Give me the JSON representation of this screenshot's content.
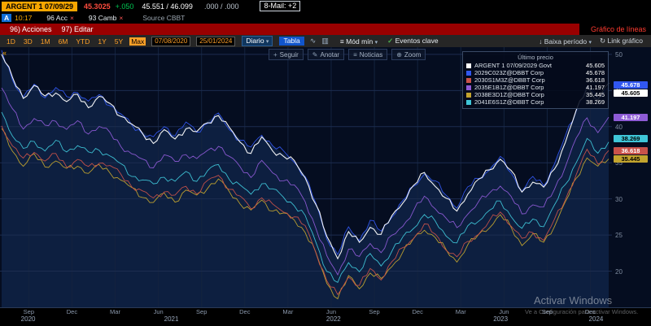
{
  "header": {
    "security": "ARGENT 1 07/09/29",
    "last_price": "45.3025",
    "change": "+.050",
    "bid_ask": "45.551 / 46.099",
    "yield_pair": ".000 / .000",
    "mail": "8-Mail: +2",
    "time_flag": "A",
    "time": "10:17",
    "acc": "96 Acc",
    "camb": "93 Camb",
    "source": "Source CBBT"
  },
  "menubar": {
    "items": [
      "96) Acciones",
      "97) Editar"
    ],
    "chart_type": "Gráfico de líneas"
  },
  "toolbar": {
    "periods": [
      "1D",
      "3D",
      "1M",
      "6M",
      "YTD",
      "1Y",
      "5Y",
      "Max"
    ],
    "selected_period": "Max",
    "date_from": "07/08/2020",
    "date_to": "25/01/2024",
    "frequency": "Diario",
    "table_label": "Tabla",
    "mod_label": "Mód mín",
    "events_label": "Eventos clave",
    "right_items": [
      "Baixa período",
      "Link gráfico"
    ]
  },
  "chart_tools": {
    "items": [
      {
        "icon": "+",
        "label": "Seguir"
      },
      {
        "icon": "✎",
        "label": "Anotar"
      },
      {
        "icon": "≡",
        "label": "Noticias"
      },
      {
        "icon": "⊕",
        "label": "Zoom"
      }
    ]
  },
  "legend": {
    "title": "Último precio"
  },
  "watermark": {
    "line1": "Activar Windows",
    "line2": "Ve a Configuración para activar Windows."
  },
  "chart_data": {
    "type": "line",
    "title": "Gráfico de líneas",
    "ylim": [
      15,
      51
    ],
    "y_ticks": [
      20,
      25,
      30,
      35,
      40,
      45,
      50
    ],
    "grid": true,
    "legend_position": "top-right",
    "x_tick_labels": [
      "Sep",
      "Dec",
      "Mar",
      "Jun",
      "Sep",
      "Dec",
      "Mar",
      "Jun",
      "Sep",
      "Dec",
      "Mar",
      "Jun",
      "Sep",
      "Dec"
    ],
    "x_tick_pcts": [
      4.7,
      11.76,
      18.82,
      25.88,
      32.94,
      40.0,
      47.06,
      54.12,
      61.18,
      68.24,
      75.3,
      82.36,
      89.42,
      96.48
    ],
    "year_labels": [
      {
        "label": "2020",
        "pct": 4.6
      },
      {
        "label": "2021",
        "pct": 28.0
      },
      {
        "label": "2022",
        "pct": 54.5
      },
      {
        "label": "2023",
        "pct": 81.8
      },
      {
        "label": "2024",
        "pct": 97.4
      }
    ],
    "series": [
      {
        "name": "ARGENT 1 07/09/2029 Govt",
        "color": "#ffffff",
        "last": "45.605",
        "values": [
          50.0,
          46.5,
          44.0,
          45.5,
          44.0,
          45.0,
          43.5,
          44.5,
          43.0,
          44.0,
          43.0,
          41.5,
          40.0,
          39.0,
          38.0,
          39.5,
          38.5,
          40.0,
          39.0,
          40.5,
          41.5,
          39.5,
          38.0,
          36.5,
          38.5,
          37.0,
          36.0,
          35.0,
          33.0,
          29.0,
          24.5,
          22.0,
          25.5,
          24.0,
          26.5,
          25.0,
          27.5,
          29.5,
          31.5,
          33.5,
          32.0,
          30.0,
          28.5,
          31.0,
          32.5,
          34.0,
          35.5,
          33.5,
          31.0,
          32.5,
          31.5,
          34.5,
          38.0,
          42.0,
          45.5,
          43.5,
          45.605
        ]
      },
      {
        "name": "2029C023Z@DBBT Corp",
        "color": "#3157f0",
        "last": "45.678",
        "values": [
          50.3,
          46.8,
          44.3,
          45.8,
          44.3,
          45.3,
          43.8,
          44.8,
          43.3,
          44.3,
          43.3,
          41.8,
          40.3,
          39.3,
          38.3,
          39.8,
          38.8,
          40.3,
          39.3,
          40.8,
          41.8,
          39.8,
          38.3,
          36.8,
          38.8,
          37.3,
          36.3,
          35.3,
          33.3,
          29.3,
          24.8,
          22.3,
          25.8,
          24.3,
          26.8,
          25.3,
          27.8,
          29.8,
          31.8,
          33.8,
          32.3,
          30.3,
          28.8,
          31.3,
          32.8,
          34.3,
          35.8,
          33.8,
          31.3,
          32.8,
          31.8,
          34.8,
          38.3,
          42.3,
          45.8,
          43.8,
          45.678
        ]
      },
      {
        "name": "2030S1M3Z@DBBT Corp",
        "color": "#c9524a",
        "last": "36.618",
        "values": [
          40.3,
          37.3,
          35.2,
          36.5,
          35.2,
          36.1,
          34.8,
          35.6,
          34.4,
          35.2,
          34.4,
          33.1,
          31.8,
          30.9,
          30.1,
          31.4,
          30.5,
          31.8,
          30.9,
          32.2,
          33.1,
          31.4,
          30.1,
          28.8,
          30.5,
          29.2,
          28.4,
          27.6,
          25.9,
          22.5,
          18.6,
          16.5,
          19.5,
          18.2,
          20.3,
          19.1,
          21.2,
          22.9,
          24.6,
          26.3,
          25.0,
          23.3,
          22.0,
          24.2,
          25.4,
          26.7,
          28.0,
          26.3,
          24.2,
          25.4,
          24.6,
          27.1,
          30.1,
          33.5,
          36.5,
          34.8,
          36.618
        ]
      },
      {
        "name": "2035E1B1Z@DBBT Corp",
        "color": "#8e5bd6",
        "last": "41.197",
        "values": [
          45.5,
          42.3,
          40.0,
          41.4,
          40.0,
          40.9,
          39.5,
          40.4,
          39.1,
          40.0,
          39.1,
          37.7,
          36.3,
          35.4,
          34.5,
          35.8,
          34.9,
          36.3,
          35.4,
          36.8,
          37.7,
          35.8,
          34.5,
          33.1,
          34.9,
          33.5,
          32.6,
          31.7,
          29.9,
          26.2,
          22.0,
          19.7,
          23.0,
          21.6,
          23.9,
          22.5,
          24.8,
          26.6,
          28.5,
          30.3,
          28.9,
          27.1,
          25.7,
          28.0,
          29.4,
          30.8,
          32.2,
          30.3,
          28.0,
          29.4,
          28.5,
          31.2,
          34.5,
          38.1,
          41.4,
          39.5,
          41.197
        ]
      },
      {
        "name": "2038E3D1Z@DBBT Corp",
        "color": "#c3a42e",
        "last": "35.445",
        "values": [
          39.5,
          36.6,
          34.5,
          35.8,
          34.5,
          35.4,
          34.1,
          34.9,
          33.7,
          34.5,
          33.7,
          32.4,
          31.2,
          30.4,
          29.5,
          30.8,
          30.0,
          31.2,
          30.4,
          31.6,
          32.4,
          30.8,
          29.5,
          28.3,
          30.0,
          28.7,
          27.9,
          27.1,
          25.4,
          22.1,
          18.3,
          16.3,
          19.2,
          17.9,
          20.0,
          18.8,
          20.8,
          22.5,
          24.1,
          25.8,
          24.6,
          22.9,
          21.7,
          23.7,
          25.0,
          26.2,
          27.5,
          25.8,
          23.7,
          25.0,
          24.1,
          26.6,
          29.5,
          32.9,
          35.8,
          34.1,
          35.445
        ]
      },
      {
        "name": "2041E6S1Z@DBBT Corp",
        "color": "#3fc6d8",
        "last": "38.269",
        "values": [
          42.0,
          39.0,
          36.9,
          38.2,
          36.9,
          37.8,
          36.5,
          37.3,
          36.1,
          36.9,
          36.1,
          34.8,
          33.5,
          32.7,
          31.8,
          33.1,
          32.2,
          33.5,
          32.7,
          33.9,
          34.8,
          33.1,
          31.8,
          30.5,
          32.2,
          31.0,
          30.1,
          29.3,
          27.6,
          24.2,
          20.3,
          18.2,
          21.2,
          19.9,
          22.0,
          20.8,
          22.9,
          24.6,
          26.3,
          28.0,
          26.7,
          25.0,
          23.7,
          25.9,
          27.1,
          28.4,
          29.7,
          28.0,
          25.9,
          27.1,
          26.3,
          28.8,
          31.8,
          35.2,
          38.2,
          36.5,
          38.269
        ]
      }
    ]
  }
}
